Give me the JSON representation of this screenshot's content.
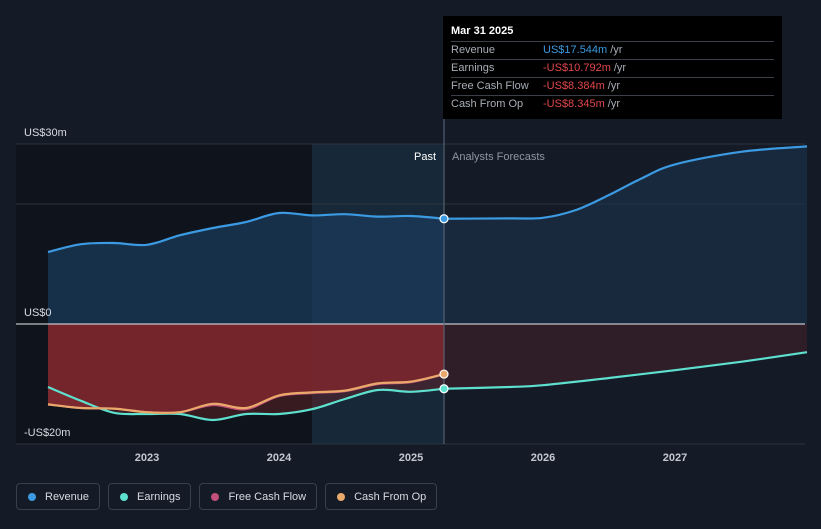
{
  "tooltip": {
    "date": "Mar 31 2025",
    "rows": [
      {
        "label": "Revenue",
        "value": "US$17.544m",
        "unit": "/yr",
        "color": "#3b9ae1"
      },
      {
        "label": "Earnings",
        "value": "-US$10.792m",
        "unit": "/yr",
        "color": "#e0474c"
      },
      {
        "label": "Free Cash Flow",
        "value": "-US$8.384m",
        "unit": "/yr",
        "color": "#e0474c"
      },
      {
        "label": "Cash From Op",
        "value": "-US$8.345m",
        "unit": "/yr",
        "color": "#e0474c"
      }
    ]
  },
  "legend": [
    {
      "label": "Revenue",
      "color": "#3b9ae1"
    },
    {
      "label": "Earnings",
      "color": "#5ee0cf"
    },
    {
      "label": "Free Cash Flow",
      "color": "#c2507a"
    },
    {
      "label": "Cash From Op",
      "color": "#e9a96a"
    }
  ],
  "chart_data": {
    "type": "line",
    "y_tick_labels": {
      "top": "US$30m",
      "zero": "US$0",
      "bottom": "-US$20m"
    },
    "ylim": [
      -20,
      30
    ],
    "xlim": [
      2022.25,
      2028.0
    ],
    "x_ticks": [
      2023,
      2024,
      2025,
      2026,
      2027
    ],
    "x_tick_labels": [
      "2023",
      "2024",
      "2025",
      "2026",
      "2027"
    ],
    "past_label": "Past",
    "forecast_label": "Analysts Forecasts",
    "divider_x": 2025.25,
    "shaded_start_x": 2024.25,
    "grid": true,
    "legend_position": "bottom-left",
    "series": [
      {
        "name": "Revenue",
        "color": "#3b9ae1",
        "x": [
          2022.25,
          2022.5,
          2022.75,
          2023.0,
          2023.25,
          2023.5,
          2023.75,
          2024.0,
          2024.25,
          2024.5,
          2024.75,
          2025.0,
          2025.25
        ],
        "values": [
          12.0,
          13.3,
          13.5,
          13.2,
          14.8,
          16.0,
          17.0,
          18.5,
          18.1,
          18.3,
          17.9,
          18.0,
          17.544
        ]
      },
      {
        "name": "Revenue forecast",
        "color": "#3b9ae1",
        "x": [
          2025.25,
          2025.75,
          2026.0,
          2026.25,
          2026.5,
          2026.75,
          2027.0,
          2027.5,
          2028.0
        ],
        "values": [
          17.544,
          17.6,
          17.7,
          19.0,
          21.5,
          24.3,
          26.6,
          28.7,
          29.6
        ]
      },
      {
        "name": "Earnings",
        "color": "#5ee0cf",
        "x": [
          2022.25,
          2022.5,
          2022.75,
          2023.0,
          2023.25,
          2023.5,
          2023.75,
          2024.0,
          2024.25,
          2024.5,
          2024.75,
          2025.0,
          2025.25
        ],
        "values": [
          -10.5,
          -12.8,
          -14.8,
          -15.0,
          -15.0,
          -16.0,
          -15.0,
          -15.0,
          -14.2,
          -12.5,
          -11.0,
          -11.3,
          -10.792
        ]
      },
      {
        "name": "Earnings forecast",
        "color": "#5ee0cf",
        "x": [
          2025.25,
          2025.75,
          2026.0,
          2026.5,
          2027.0,
          2027.5,
          2028.0
        ],
        "values": [
          -10.792,
          -10.5,
          -10.2,
          -9.0,
          -7.7,
          -6.3,
          -4.7
        ]
      },
      {
        "name": "Free Cash Flow",
        "color": "#c2507a",
        "x": [
          2022.25,
          2022.5,
          2022.75,
          2023.0,
          2023.25,
          2023.5,
          2023.75,
          2024.0,
          2024.25,
          2024.5,
          2024.75,
          2025.0,
          2025.25
        ],
        "values": [
          -13.4,
          -14.0,
          -14.1,
          -14.7,
          -14.7,
          -13.5,
          -14.2,
          -12.0,
          -11.5,
          -11.2,
          -10.0,
          -9.7,
          -8.384
        ]
      },
      {
        "name": "Cash From Op",
        "color": "#e9a96a",
        "x": [
          2022.25,
          2022.5,
          2022.75,
          2023.0,
          2023.25,
          2023.5,
          2023.75,
          2024.0,
          2024.25,
          2024.5,
          2024.75,
          2025.0,
          2025.25
        ],
        "values": [
          -13.4,
          -14.0,
          -14.1,
          -14.7,
          -14.7,
          -13.3,
          -14.0,
          -11.9,
          -11.4,
          -11.1,
          -9.9,
          -9.6,
          -8.345
        ]
      }
    ]
  }
}
